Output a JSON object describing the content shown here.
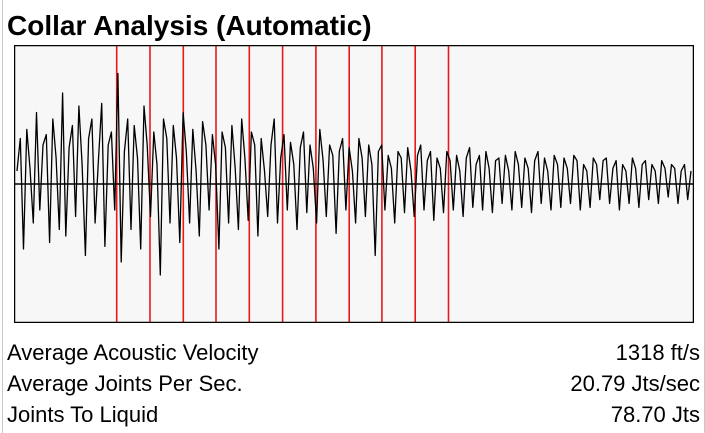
{
  "title": "Collar Analysis (Automatic)",
  "colors": {
    "plot_background": "#f7f7f7",
    "trace": "#000000",
    "marker": "#e8191c",
    "baseline": "#000000",
    "border": "#000000"
  },
  "chart_data": {
    "type": "line",
    "title": "Collar Analysis (Automatic)",
    "xlabel": "",
    "ylabel": "",
    "grid": false,
    "series": [
      {
        "values": [
          0.1,
          0.35,
          -0.5,
          0.42,
          0.12,
          -0.3,
          0.55,
          -0.2,
          0.3,
          0.38,
          -0.45,
          0.5,
          0.2,
          -0.35,
          0.7,
          -0.4,
          0.28,
          0.45,
          -0.25,
          0.6,
          0.15,
          -0.55,
          0.35,
          0.5,
          -0.3,
          0.18,
          0.62,
          -0.48,
          0.3,
          0.4,
          -0.2,
          0.85,
          -0.6,
          0.25,
          0.5,
          -0.35,
          0.45,
          0.2,
          -0.5,
          0.6,
          0.3,
          -0.25,
          0.4,
          0.15,
          -0.7,
          0.5,
          0.35,
          -0.3,
          0.45,
          0.2,
          -0.45,
          0.55,
          0.25,
          -0.3,
          0.42,
          0.1,
          -0.4,
          0.48,
          0.3,
          -0.2,
          0.38,
          0.15,
          -0.5,
          0.4,
          0.28,
          -0.3,
          0.45,
          0.12,
          -0.35,
          0.5,
          0.2,
          -0.28,
          0.4,
          0.3,
          -0.4,
          0.35,
          0.1,
          -0.25,
          0.3,
          0.5,
          -0.3,
          0.2,
          0.38,
          -0.2,
          0.32,
          0.15,
          -0.35,
          0.28,
          0.4,
          -0.22,
          0.3,
          0.12,
          -0.3,
          0.42,
          0.18,
          -0.25,
          0.3,
          0.22,
          -0.38,
          0.25,
          0.35,
          -0.2,
          0.28,
          0.1,
          -0.3,
          0.35,
          0.2,
          -0.25,
          0.3,
          0.15,
          -0.55,
          0.25,
          0.3,
          -0.2,
          0.22,
          0.12,
          -0.3,
          0.25,
          0.2,
          -0.22,
          0.28,
          0.1,
          -0.25,
          0.22,
          0.3,
          -0.2,
          0.18,
          0.25,
          -0.28,
          0.2,
          0.12,
          -0.22,
          0.25,
          0.18,
          -0.2,
          0.22,
          0.1,
          -0.25,
          0.2,
          0.28,
          -0.18,
          0.15,
          0.22,
          -0.2,
          0.25,
          0.12,
          -0.22,
          0.18,
          0.2,
          -0.15,
          0.22,
          0.1,
          -0.2,
          0.25,
          0.15,
          -0.18,
          0.2,
          0.12,
          -0.22,
          0.18,
          0.25,
          -0.15,
          0.2,
          0.1,
          -0.2,
          0.22,
          0.15,
          -0.18,
          0.2,
          0.12,
          -0.15,
          0.22,
          0.18,
          -0.2,
          0.15,
          0.1,
          -0.18,
          0.2,
          0.15,
          -0.12,
          0.18,
          0.2,
          -0.15,
          0.12,
          0.18,
          -0.2,
          0.15,
          0.1,
          -0.15,
          0.2,
          0.12,
          -0.18,
          0.15,
          0.18,
          -0.12,
          0.15,
          0.1,
          -0.15,
          0.18,
          0.12,
          -0.1,
          0.15,
          0.12,
          -0.15,
          0.1,
          0.15,
          -0.12,
          0.1
        ]
      }
    ],
    "collar_markers": [
      0.151,
      0.2,
      0.249,
      0.297,
      0.346,
      0.395,
      0.444,
      0.493,
      0.541,
      0.59,
      0.639
    ]
  },
  "stats": {
    "rows": [
      {
        "label": "Average Acoustic Velocity",
        "value": "1318 ft/s"
      },
      {
        "label": "Average Joints Per Sec.",
        "value": "20.79 Jts/sec"
      },
      {
        "label": "Joints To Liquid",
        "value": "78.70 Jts"
      }
    ]
  }
}
